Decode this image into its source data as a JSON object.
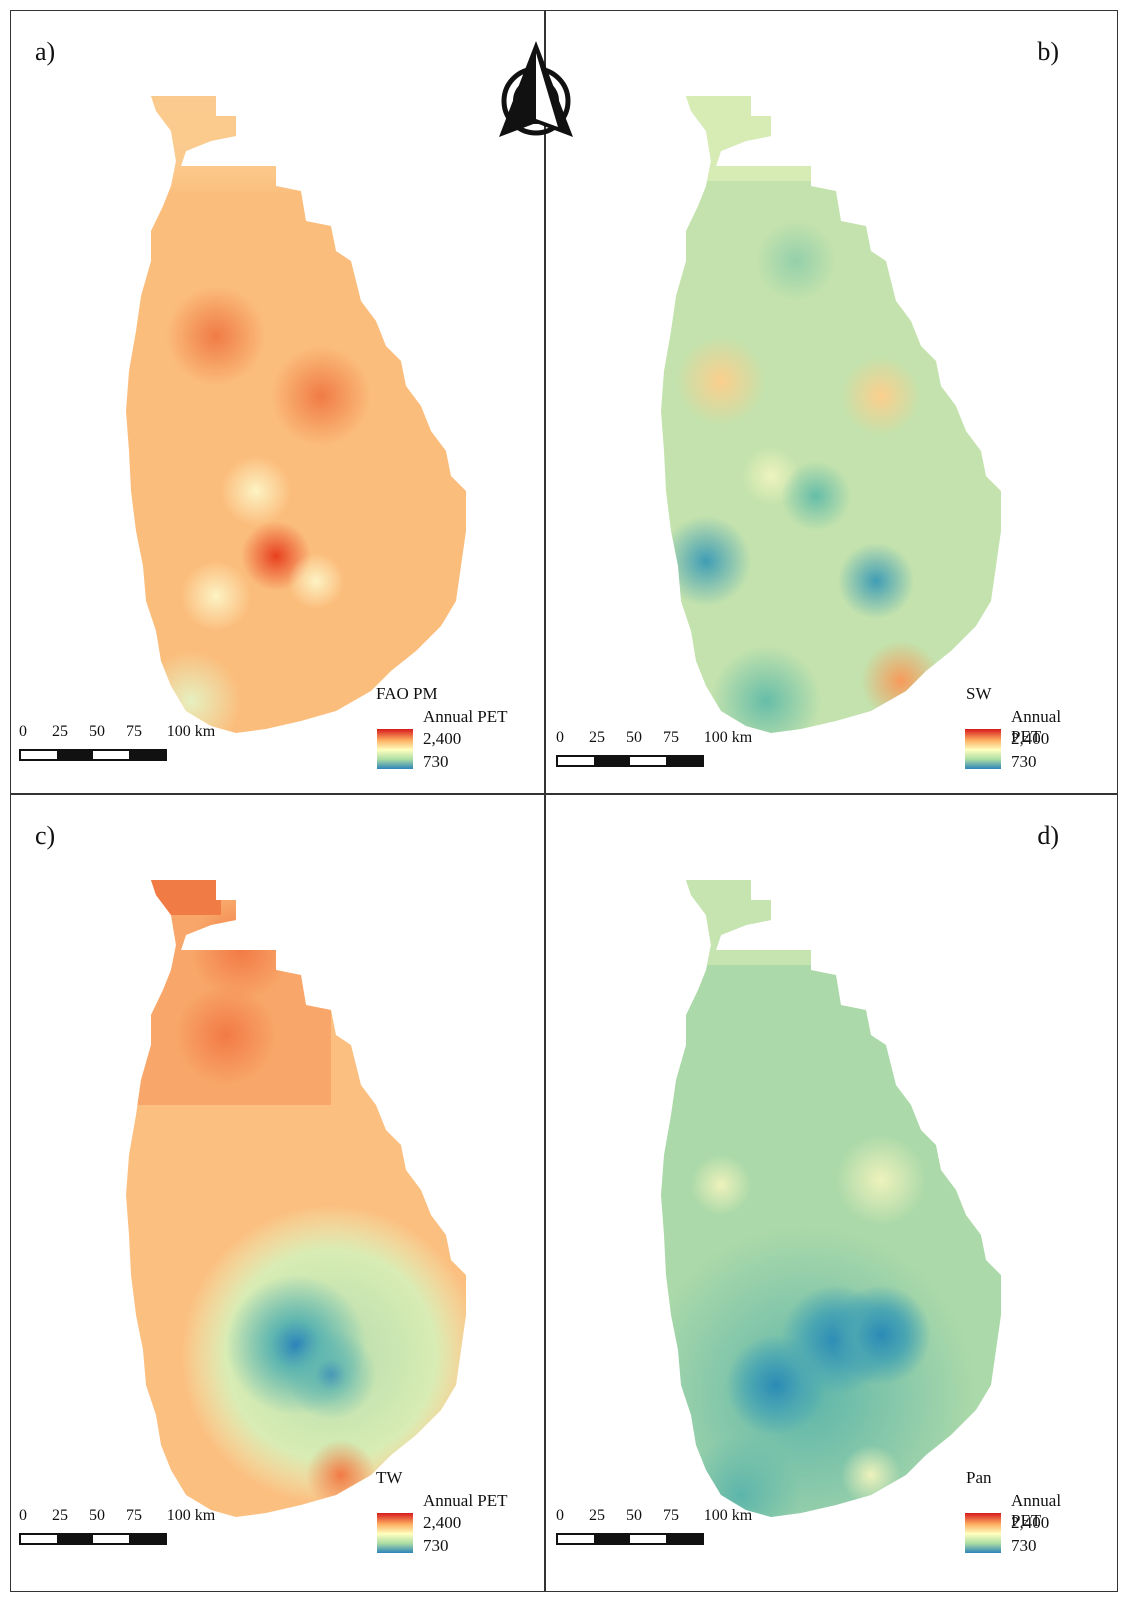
{
  "north_arrow": {
    "icon": "north-arrow-icon"
  },
  "scale_bar": {
    "ticks": [
      "0",
      "25",
      "50",
      "75",
      "100 km"
    ]
  },
  "legend": {
    "title": "Annual PET",
    "max": "2,400",
    "min": "730",
    "ramp": [
      "#d7191c",
      "#fdae61",
      "#ffffbf",
      "#abdda4",
      "#2b83ba"
    ]
  },
  "panels": [
    {
      "label": "a)",
      "method": "FAO PM"
    },
    {
      "label": "b)",
      "method": "SW"
    },
    {
      "label": "c)",
      "method": "TW"
    },
    {
      "label": "d)",
      "method": "Pan"
    }
  ]
}
